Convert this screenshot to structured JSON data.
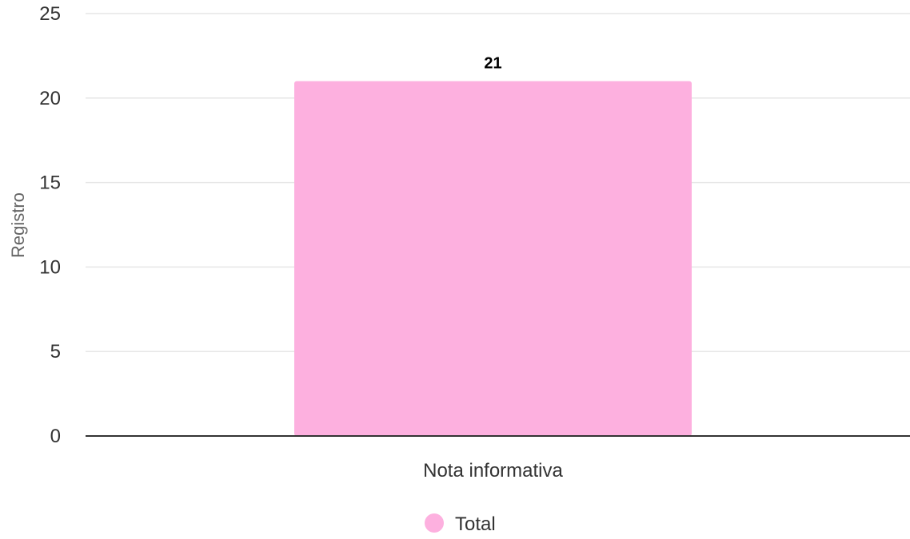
{
  "chart_data": {
    "type": "bar",
    "title": "",
    "xlabel": "",
    "ylabel": "Registro",
    "ylim": [
      0,
      25
    ],
    "yticks": [
      0,
      5,
      10,
      15,
      20,
      25
    ],
    "grid": true,
    "legend_position": "bottom-center",
    "categories": [
      "Nota informativa"
    ],
    "series": [
      {
        "name": "Total",
        "values": [
          21
        ],
        "color": "#fdb0df"
      }
    ],
    "data_labels": [
      "21"
    ]
  },
  "colors": {
    "grid": "#e6e6e6",
    "axis": "#333333",
    "tick_text": "#333333",
    "ylabel_text": "#666666",
    "data_label_text": "#000000"
  }
}
